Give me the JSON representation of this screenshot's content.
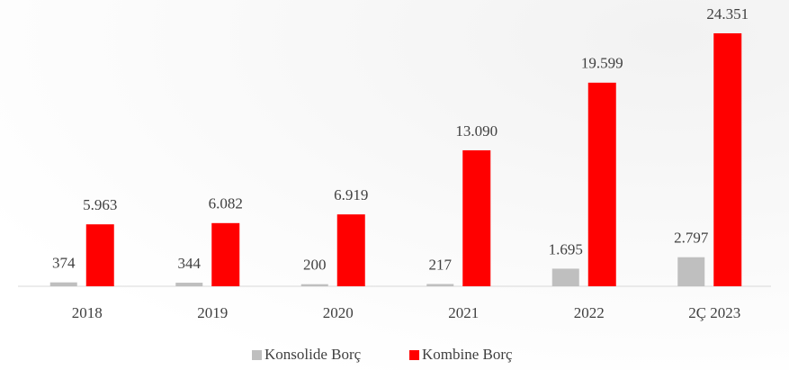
{
  "chart_data": {
    "type": "bar",
    "categories": [
      "2018",
      "2019",
      "2020",
      "2021",
      "2022",
      "2Ç 2023"
    ],
    "series": [
      {
        "name": "Konsolide Borç",
        "color": "#bfbfbf",
        "values": [
          374,
          344,
          200,
          217,
          1695,
          2797
        ],
        "value_labels": [
          "374",
          "344",
          "200",
          "217",
          "1.695",
          "2.797"
        ]
      },
      {
        "name": "Kombine Borç",
        "color": "#ff0000",
        "values": [
          5963,
          6082,
          6919,
          13090,
          19599,
          24351
        ],
        "value_labels": [
          "5.963",
          "6.082",
          "6.919",
          "13.090",
          "19.599",
          "24.351"
        ]
      }
    ],
    "legend": "bottom"
  }
}
